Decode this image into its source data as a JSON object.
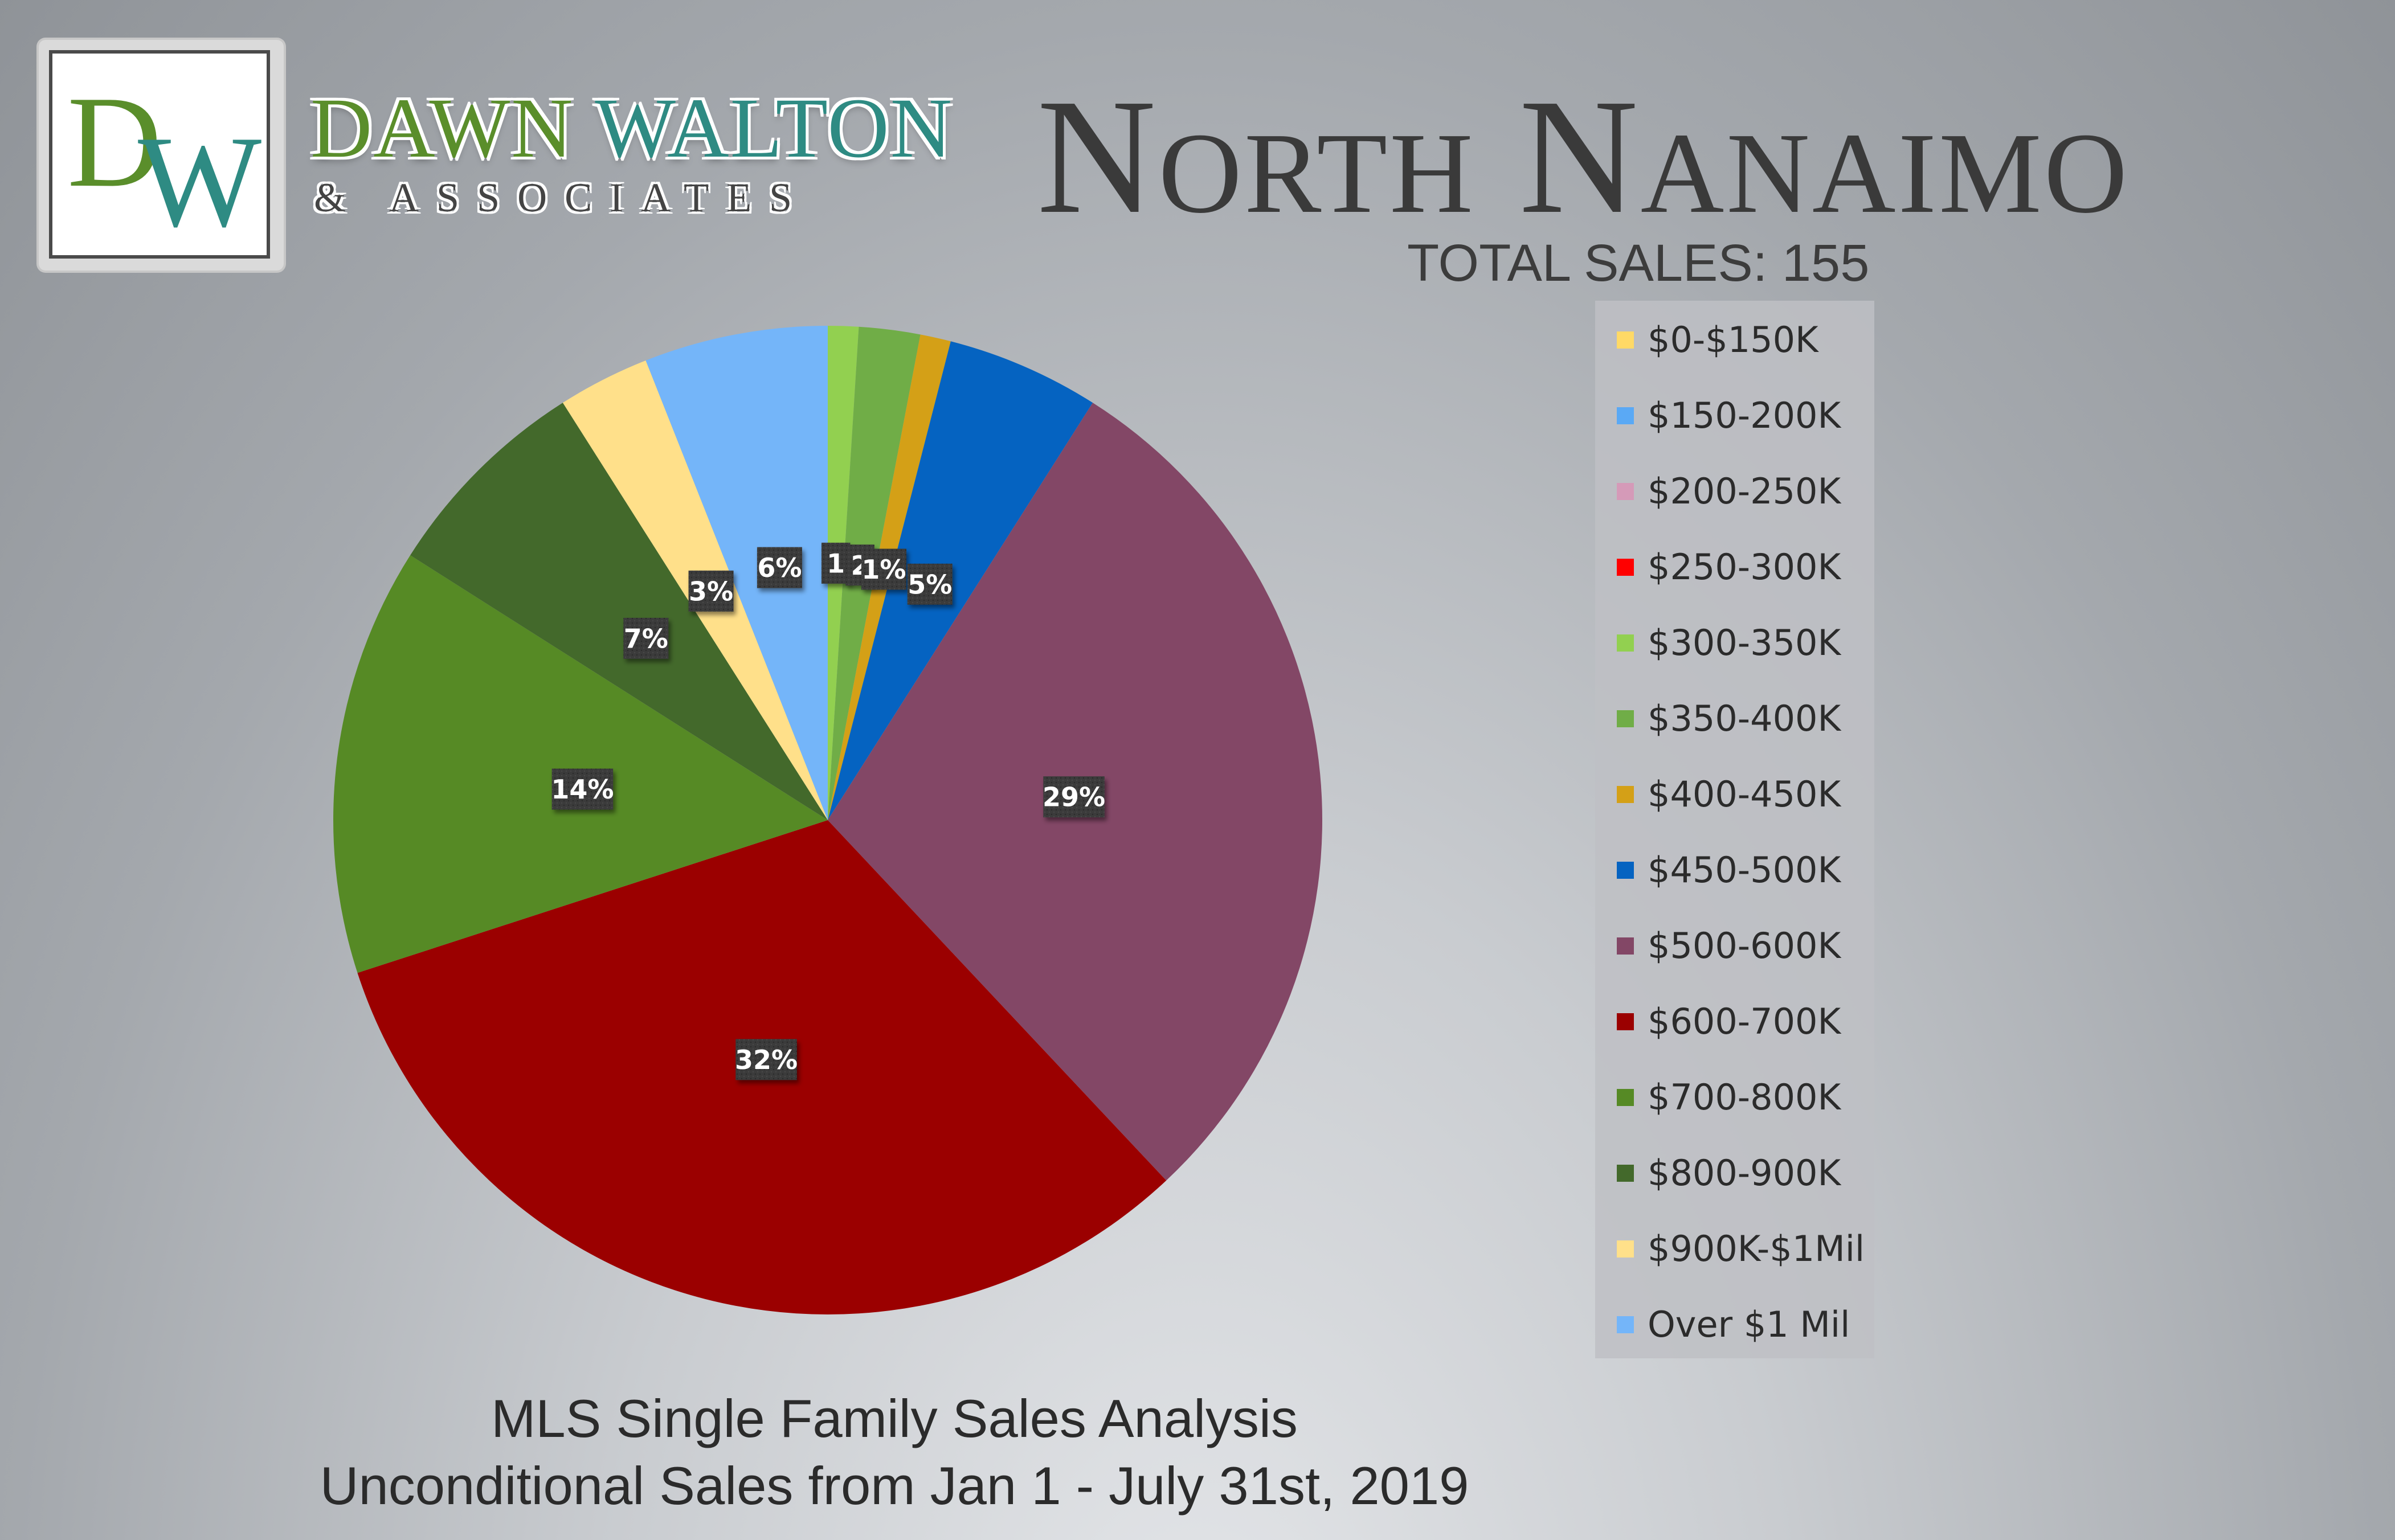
{
  "brand": {
    "logo_letters": [
      "D",
      "W"
    ],
    "name_first": "DAWN",
    "name_last": "WALTON",
    "subtitle": "& ASSOCIATES"
  },
  "header": {
    "title": "North Nanaimo",
    "total_sales": "TOTAL SALES: 155"
  },
  "footer": {
    "line1": "MLS Single Family Sales Analysis",
    "line2": "Unconditional Sales from Jan 1 - July 31st, 2019"
  },
  "chart_data": {
    "type": "pie",
    "title": "North Nanaimo",
    "legend_placement": "right",
    "start_angle_deg": 0,
    "direction": "clockwise",
    "slices": [
      {
        "label": "$300-350K",
        "value": 1,
        "data_label": "1",
        "color": "#92d050"
      },
      {
        "label": "$350-400K",
        "value": 2,
        "data_label": "2",
        "color": "#70ad47"
      },
      {
        "label": "$400-450K",
        "value": 1,
        "data_label": "1%",
        "color": "#d4a017"
      },
      {
        "label": "$450-500K",
        "value": 5,
        "data_label": "5%",
        "color": "#0563c1"
      },
      {
        "label": "$500-600K",
        "value": 29,
        "data_label": "29%",
        "color": "#834766"
      },
      {
        "label": "$600-700K",
        "value": 32,
        "data_label": "32%",
        "color": "#9b0000"
      },
      {
        "label": "$700-800K",
        "value": 14,
        "data_label": "14%",
        "color": "#568a25"
      },
      {
        "label": "$800-900K",
        "value": 7,
        "data_label": "7%",
        "color": "#43692b"
      },
      {
        "label": "$900K-$1Mil",
        "value": 3,
        "data_label": "3%",
        "color": "#ffe08a"
      },
      {
        "label": "Over $1 Mil",
        "value": 6,
        "data_label": "6%",
        "color": "#74b5f9"
      }
    ],
    "legend": [
      {
        "label": "$0-$150K",
        "color": "#ffd966"
      },
      {
        "label": "$150-200K",
        "color": "#5aa9f5"
      },
      {
        "label": "$200-250K",
        "color": "#d59ab8"
      },
      {
        "label": "$250-300K",
        "color": "#ff0000"
      },
      {
        "label": "$300-350K",
        "color": "#92d050"
      },
      {
        "label": "$350-400K",
        "color": "#70ad47"
      },
      {
        "label": "$400-450K",
        "color": "#d4a017"
      },
      {
        "label": "$450-500K",
        "color": "#0563c1"
      },
      {
        "label": "$500-600K",
        "color": "#834766"
      },
      {
        "label": "$600-700K",
        "color": "#9b0000"
      },
      {
        "label": "$700-800K",
        "color": "#568a25"
      },
      {
        "label": "$800-900K",
        "color": "#43692b"
      },
      {
        "label": "$900K-$1Mil",
        "color": "#ffe08a"
      },
      {
        "label": "Over $1 Mil",
        "color": "#74b5f9"
      }
    ]
  }
}
